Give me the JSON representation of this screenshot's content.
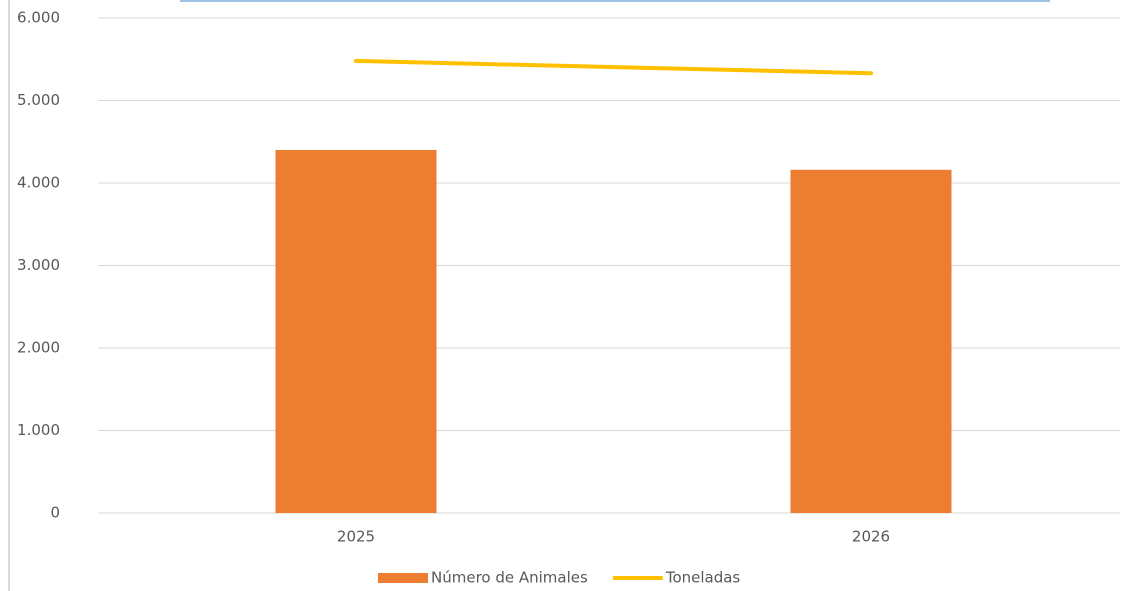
{
  "chart_data": {
    "type": "bar",
    "categories": [
      "2025",
      "2026"
    ],
    "series": [
      {
        "name": "Número de Animales",
        "color": "#ED7D31",
        "type": "bar",
        "values": [
          4400,
          4160
        ]
      },
      {
        "name": "Toneladas",
        "color": "#FFC000",
        "type": "line",
        "values": [
          5480,
          5330
        ]
      }
    ],
    "ylim": [
      0,
      6000
    ],
    "yticks": [
      0,
      {
        "value": 1000,
        "label": "1.000"
      },
      {
        "value": 2000,
        "label": "2.000"
      },
      {
        "value": 3000,
        "label": "3.000"
      },
      {
        "value": 4000,
        "label": "4.000"
      },
      {
        "value": 5000,
        "label": "5.000"
      },
      {
        "value": 6000,
        "label": "6.000"
      }
    ],
    "grid": true
  }
}
